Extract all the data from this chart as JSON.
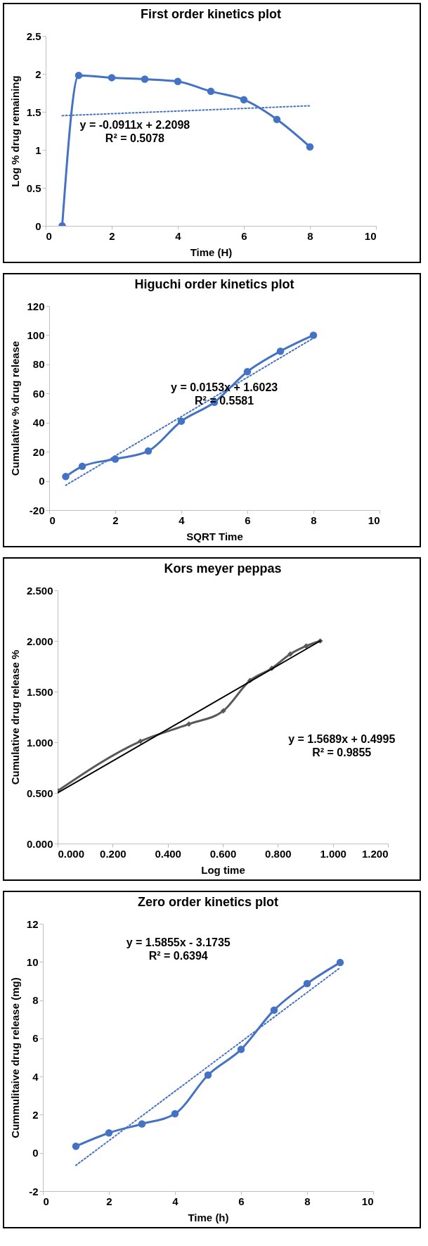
{
  "chart_data": [
    {
      "type": "line",
      "title": "First order kinetics plot",
      "xlabel": "Time (H)",
      "ylabel": "Log % drug remaining",
      "x": [
        0.5,
        1,
        2,
        3,
        4,
        5,
        6,
        7,
        8
      ],
      "series": [
        {
          "color": "#4472c4",
          "values": [
            0,
            1.98,
            1.95,
            1.93,
            1.9,
            1.77,
            1.66,
            1.4,
            1.04
          ]
        },
        {
          "type": "line",
          "x": [
            0.5,
            8
          ],
          "values": [
            1.45,
            1.58
          ],
          "color": "#4472c4",
          "line_style": "dotted",
          "marker": "none"
        }
      ],
      "xlim": [
        0,
        10
      ],
      "xticks": [
        0,
        2,
        4,
        6,
        8,
        10
      ],
      "ylim": [
        0,
        2.5
      ],
      "yticks": [
        0,
        0.5,
        1,
        1.5,
        2,
        2.5
      ],
      "marker": "circle",
      "grid": false,
      "annotations": [
        "y = -0.0911x + 2.2098",
        "R² = 0.5078"
      ]
    },
    {
      "type": "line",
      "title": "Higuchi order kinetics plot",
      "xlabel": "SQRT Time",
      "ylabel": "Cumulative % drug release",
      "x": [
        0.5,
        1,
        2,
        3,
        4,
        5,
        6,
        7,
        8
      ],
      "series": [
        {
          "color": "#4472c4",
          "values": [
            3,
            10,
            15,
            20.5,
            41,
            54,
            75,
            89,
            100
          ]
        },
        {
          "type": "line",
          "x": [
            0.5,
            8
          ],
          "values": [
            -3,
            98
          ],
          "color": "#4472c4",
          "line_style": "dotted",
          "marker": "none"
        }
      ],
      "xlim": [
        0,
        10
      ],
      "xticks": [
        0,
        2,
        4,
        6,
        8,
        10
      ],
      "ylim": [
        -20,
        120
      ],
      "yticks": [
        -20,
        0,
        20,
        40,
        60,
        80,
        100,
        120
      ],
      "marker": "circle",
      "grid": false,
      "annotations": [
        "y = 0.0153x + 1.6023",
        "R² = 0.5581"
      ]
    },
    {
      "type": "line",
      "title": "Kors meyer peppas",
      "xlabel": "Log time",
      "ylabel": "Cumulative drug release %",
      "x": [
        0,
        0.301,
        0.477,
        0.602,
        0.699,
        0.778,
        0.845,
        0.903,
        0.954
      ],
      "series": [
        {
          "color": "#595959",
          "values": [
            0.52,
            1.01,
            1.18,
            1.31,
            1.61,
            1.73,
            1.87,
            1.95,
            2.0
          ]
        },
        {
          "type": "line",
          "x": [
            0,
            0.954
          ],
          "values": [
            0.5,
            2.0
          ],
          "color": "#000000",
          "line_style": "solid",
          "marker": "none"
        }
      ],
      "xlim": [
        0,
        1.2
      ],
      "xticks": [
        {
          "value": 0,
          "label": "0.000"
        },
        {
          "value": 0.2,
          "label": "0.200"
        },
        {
          "value": 0.4,
          "label": "0.400"
        },
        {
          "value": 0.6,
          "label": "0.600"
        },
        {
          "value": 0.8,
          "label": "0.800"
        },
        {
          "value": 1,
          "label": "1.000"
        },
        {
          "value": 1.2,
          "label": "1.200"
        }
      ],
      "ylim": [
        0,
        2.5
      ],
      "yticks": [
        {
          "value": 0,
          "label": "0.000"
        },
        {
          "value": 0.5,
          "label": "0.500"
        },
        {
          "value": 1,
          "label": "1.000"
        },
        {
          "value": 1.5,
          "label": "1.500"
        },
        {
          "value": 2,
          "label": "2.000"
        },
        {
          "value": 2.5,
          "label": "2.500"
        }
      ],
      "marker": "diamond",
      "grid": false,
      "annotations": [
        "y = 1.5689x + 0.4995",
        "R² = 0.9855"
      ]
    },
    {
      "type": "line",
      "title": "Zero order kinetics plot",
      "xlabel": "Time (h)",
      "ylabel": "Cummulitaive drug release (mg)",
      "x": [
        1,
        2,
        3,
        4,
        5,
        6,
        7,
        8,
        9
      ],
      "series": [
        {
          "color": "#4472c4",
          "values": [
            0.35,
            1.05,
            1.52,
            2.05,
            4.08,
            5.42,
            7.48,
            8.87,
            9.97
          ]
        },
        {
          "type": "line",
          "x": [
            1,
            9
          ],
          "values": [
            -0.65,
            9.7
          ],
          "color": "#4472c4",
          "line_style": "dotted",
          "marker": "none"
        }
      ],
      "xlim": [
        0,
        10
      ],
      "xticks": [
        0,
        2,
        4,
        6,
        8,
        10
      ],
      "ylim": [
        -2,
        12
      ],
      "yticks": [
        -2,
        0,
        2,
        4,
        6,
        8,
        10,
        12
      ],
      "marker": "circle",
      "grid": false,
      "annotations": [
        "y = 1.5855x - 3.1735",
        "R² = 0.6394"
      ]
    }
  ]
}
